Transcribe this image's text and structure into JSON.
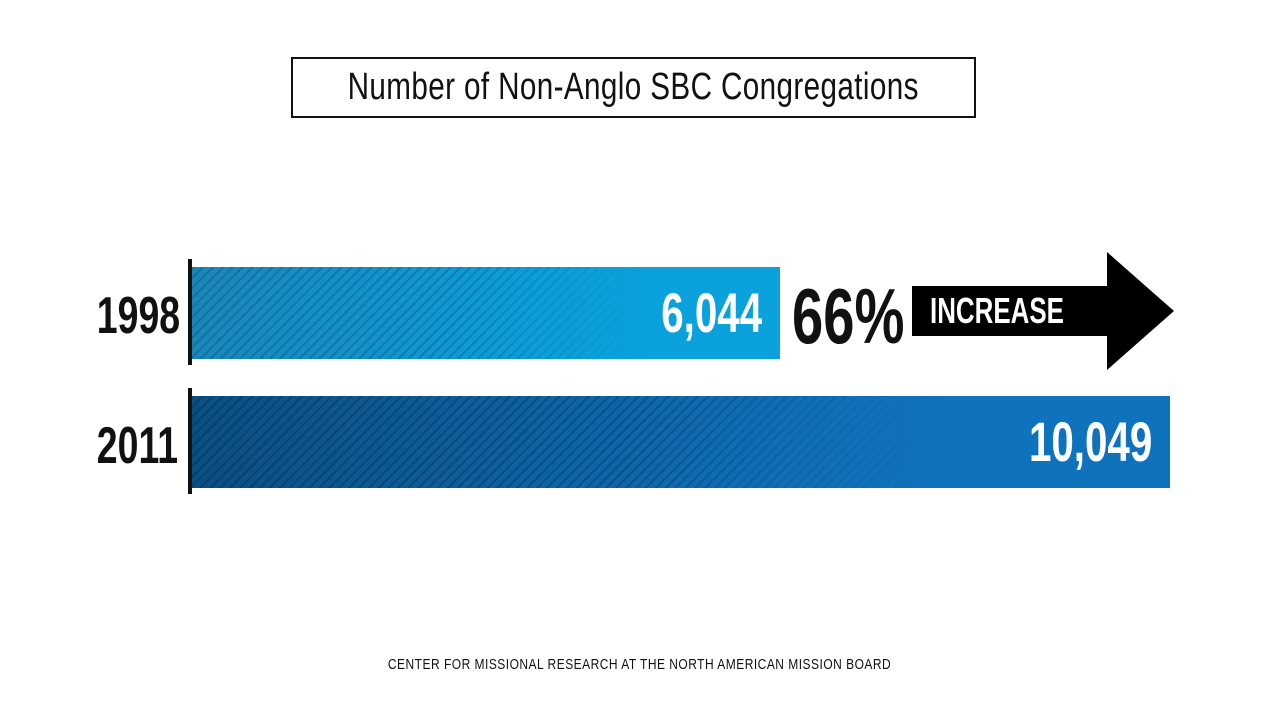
{
  "chart_data": {
    "type": "bar",
    "orientation": "horizontal",
    "title": "Number of Non-Anglo SBC Congregations",
    "categories": [
      "1998",
      "2011"
    ],
    "values": [
      6044,
      10049
    ],
    "value_labels": [
      "6,044",
      "10,049"
    ],
    "annotation": {
      "percent": "66%",
      "label": "INCREASE"
    },
    "source": "CENTER FOR MISSIONAL RESEARCH AT THE NORTH AMERICAN MISSION BOARD",
    "colors": {
      "bar_1998": "#0aa1dd",
      "bar_2011": "#0f72bd",
      "arrow": "#000000"
    },
    "grid": false
  }
}
